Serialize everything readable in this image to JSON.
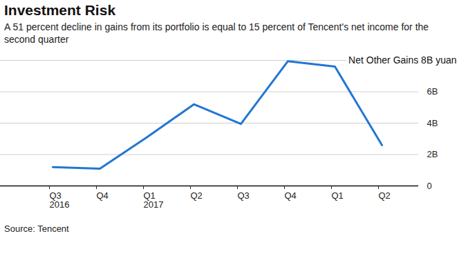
{
  "chart_data": {
    "type": "line",
    "title": "Investment Risk",
    "subtitle": "A 51 percent decline in gains from its portfolio is equal to 15 percent of Tencent's net income for the second quarter",
    "source": "Source: Tencent",
    "categories": [
      "Q3\n2016",
      "Q4",
      "Q1\n2017",
      "Q2",
      "Q3",
      "Q4",
      "Q1",
      "Q2"
    ],
    "values": [
      1.2,
      1.1,
      3.1,
      5.2,
      3.95,
      7.95,
      7.6,
      2.6
    ],
    "color": "#2176d2",
    "ylim": [
      0,
      8
    ],
    "yticks": [
      0,
      {
        "value": 2,
        "label": "2B"
      },
      {
        "value": 4,
        "label": "4B"
      },
      {
        "value": 6,
        "label": "6B"
      },
      {
        "value": 8,
        "label": "Net Other Gains 8B yuan"
      }
    ],
    "grid": true
  }
}
